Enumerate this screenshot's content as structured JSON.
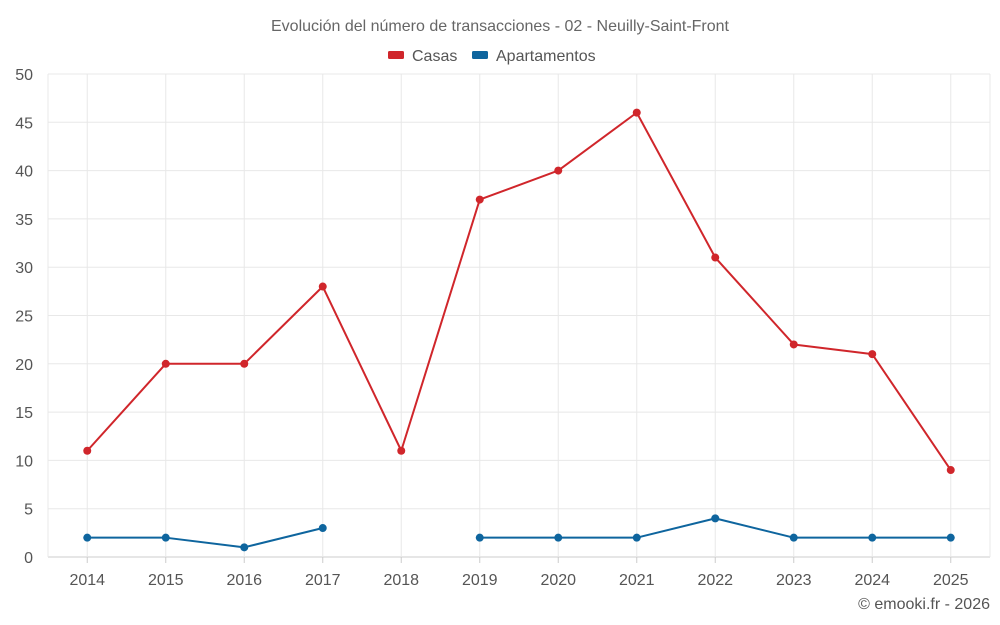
{
  "chart_data": {
    "type": "line",
    "title": "Evolución del número de transacciones - 02 - Neuilly-Saint-Front",
    "xlabel": "",
    "ylabel": "",
    "ylim": [
      0,
      50
    ],
    "yticks": [
      0,
      5,
      10,
      15,
      20,
      25,
      30,
      35,
      40,
      45,
      50
    ],
    "categories": [
      "2014",
      "2015",
      "2016",
      "2017",
      "2018",
      "2019",
      "2020",
      "2021",
      "2022",
      "2023",
      "2024",
      "2025"
    ],
    "series": [
      {
        "name": "Casas",
        "color": "#d0262b",
        "values": [
          11,
          20,
          20,
          28,
          11,
          37,
          40,
          46,
          31,
          22,
          21,
          9
        ]
      },
      {
        "name": "Apartamentos",
        "color": "#0e659e",
        "values": [
          2,
          2,
          1,
          3,
          null,
          2,
          2,
          2,
          4,
          2,
          2,
          2
        ]
      }
    ],
    "legend_position": "top-center",
    "grid": true
  },
  "credit": "© emooki.fr - 2026"
}
